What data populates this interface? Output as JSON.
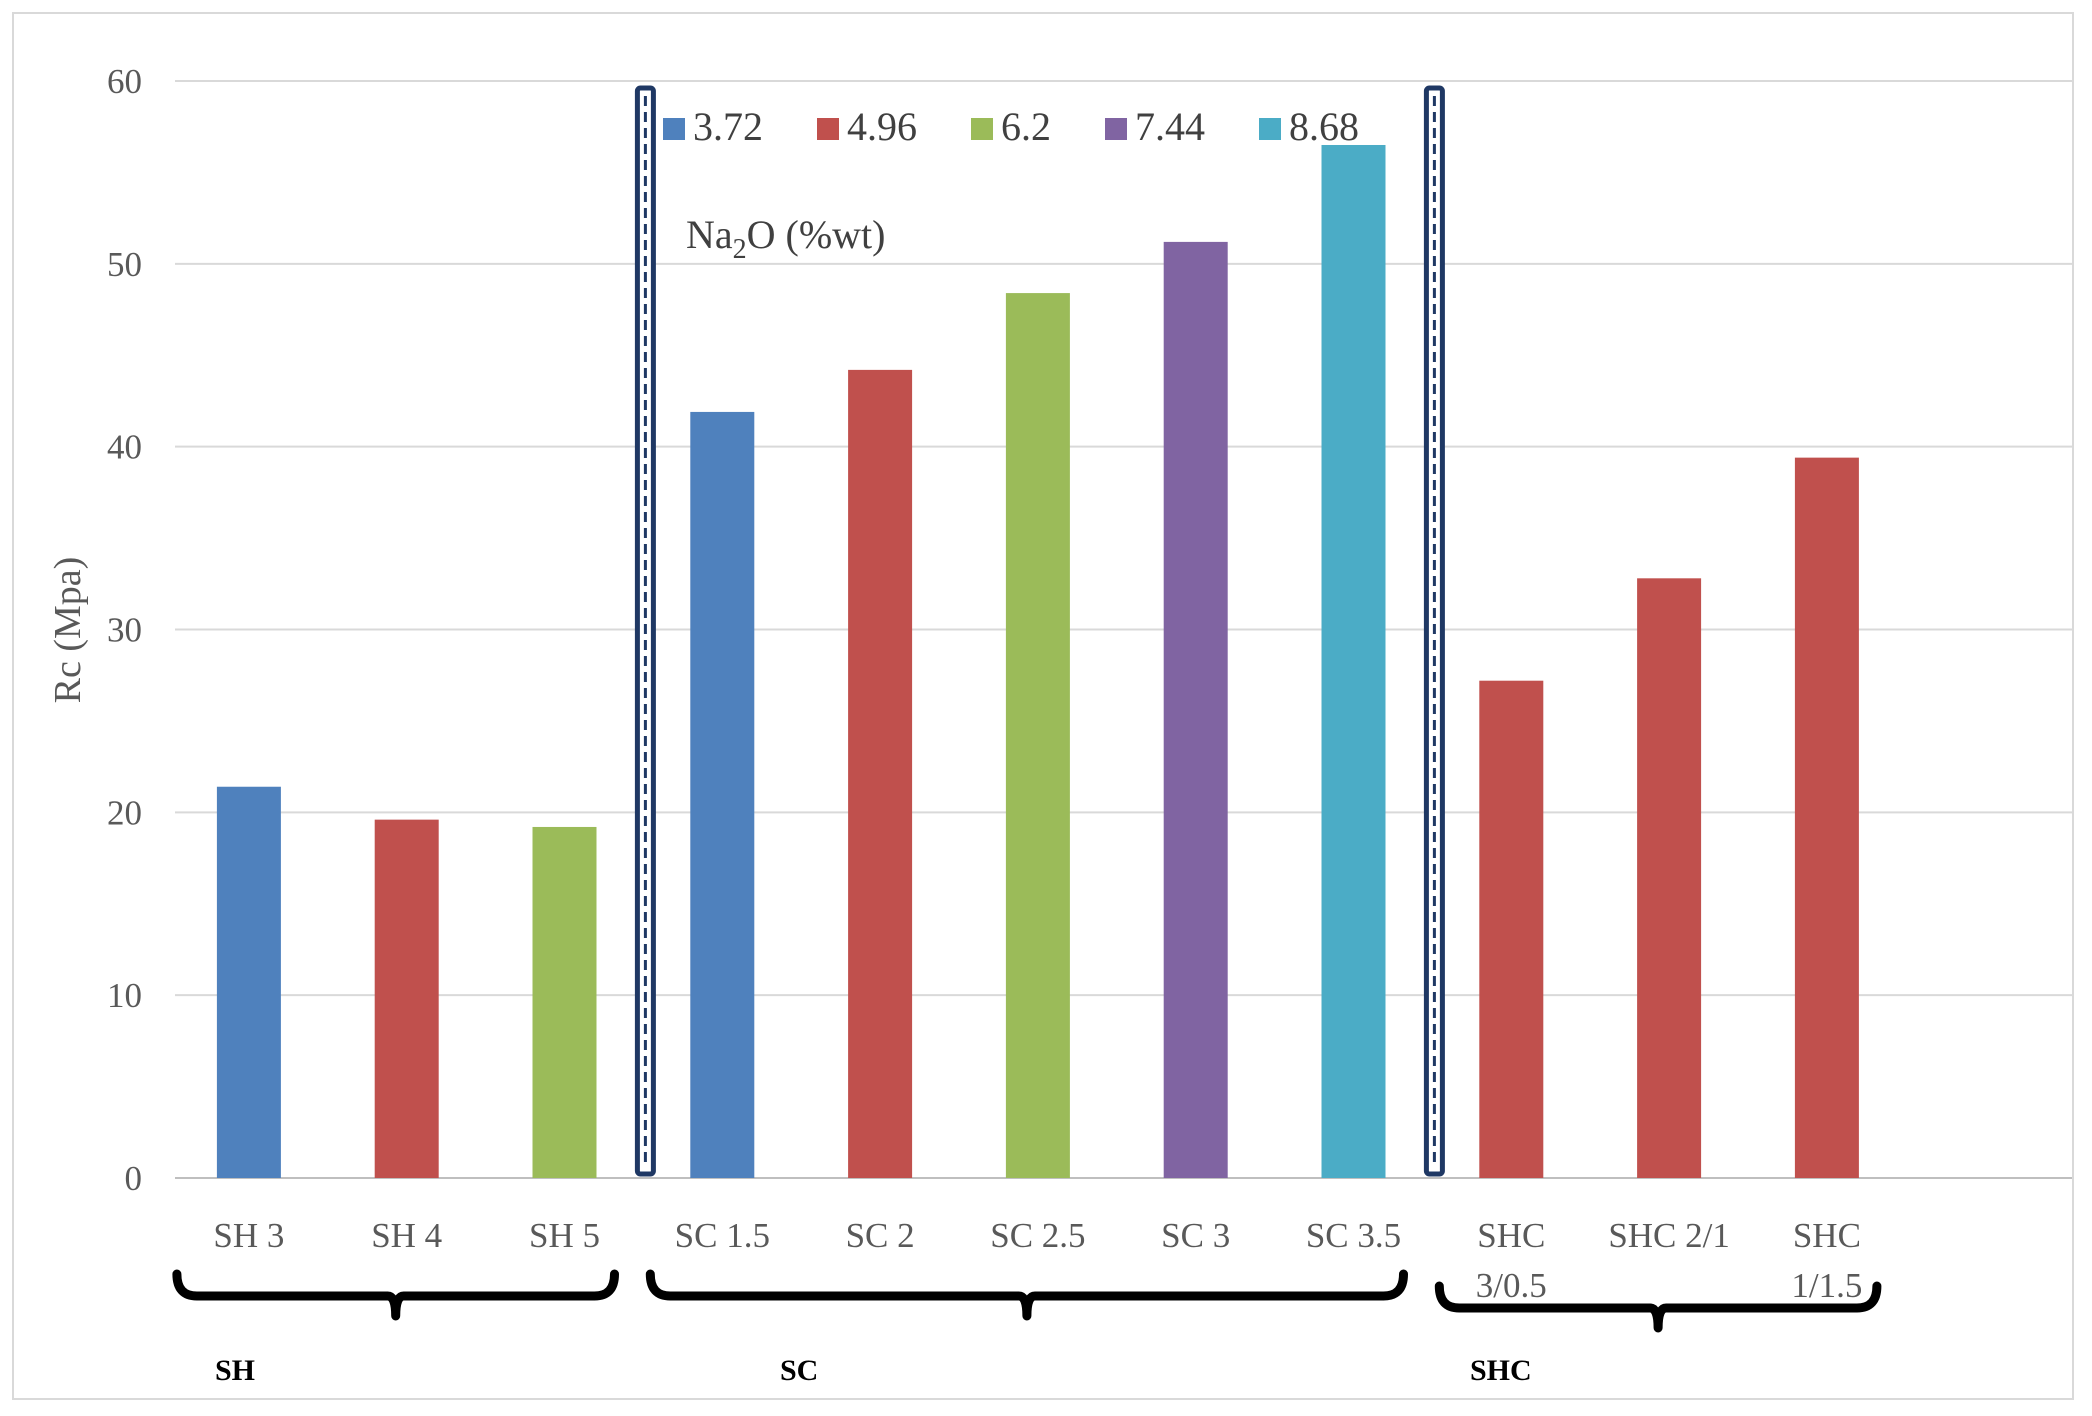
{
  "chart_data": {
    "type": "bar",
    "title": "",
    "xlabel": "",
    "ylabel": "Rc (Mpa)",
    "ylim": [
      0,
      60
    ],
    "yticks": [
      0,
      10,
      20,
      30,
      40,
      50,
      60
    ],
    "grid": true,
    "categories": [
      [
        "SH 3"
      ],
      [
        "SH 4"
      ],
      [
        "SH 5"
      ],
      [
        "SC 1.5"
      ],
      [
        "SC 2"
      ],
      [
        "SC 2.5"
      ],
      [
        "SC 3"
      ],
      [
        "SC 3.5"
      ],
      [
        "SHC",
        "3/0.5"
      ],
      [
        "SHC 2/1"
      ],
      [
        "SHC",
        "1/1.5"
      ]
    ],
    "values": [
      21.4,
      19.6,
      19.2,
      41.9,
      44.2,
      48.4,
      51.2,
      56.5,
      27.2,
      32.8,
      39.4
    ],
    "bar_series": [
      "3.72",
      "4.96",
      "6.2",
      "3.72",
      "4.96",
      "6.2",
      "7.44",
      "8.68",
      "4.96",
      "4.96",
      "4.96"
    ],
    "legend": {
      "position": "top",
      "title_main": "Na",
      "title_sub": "2",
      "title_rest": "O (%wt)",
      "entries": [
        {
          "name": "3.72",
          "color": "#4f81bd"
        },
        {
          "name": "4.96",
          "color": "#c0504d"
        },
        {
          "name": "6.2",
          "color": "#9bbb59"
        },
        {
          "name": "7.44",
          "color": "#8064a2"
        },
        {
          "name": "8.68",
          "color": "#4bacc6"
        }
      ]
    },
    "groups": [
      {
        "label": "SH",
        "from": 0,
        "to": 2
      },
      {
        "label": "SC",
        "from": 3,
        "to": 7
      },
      {
        "label": "SHC",
        "from": 8,
        "to": 10
      }
    ],
    "separators_after": [
      2,
      7
    ],
    "colors": {
      "grid": "#d9d9d9",
      "axis": "#bfbfbf",
      "separator": "#1f3864"
    }
  }
}
